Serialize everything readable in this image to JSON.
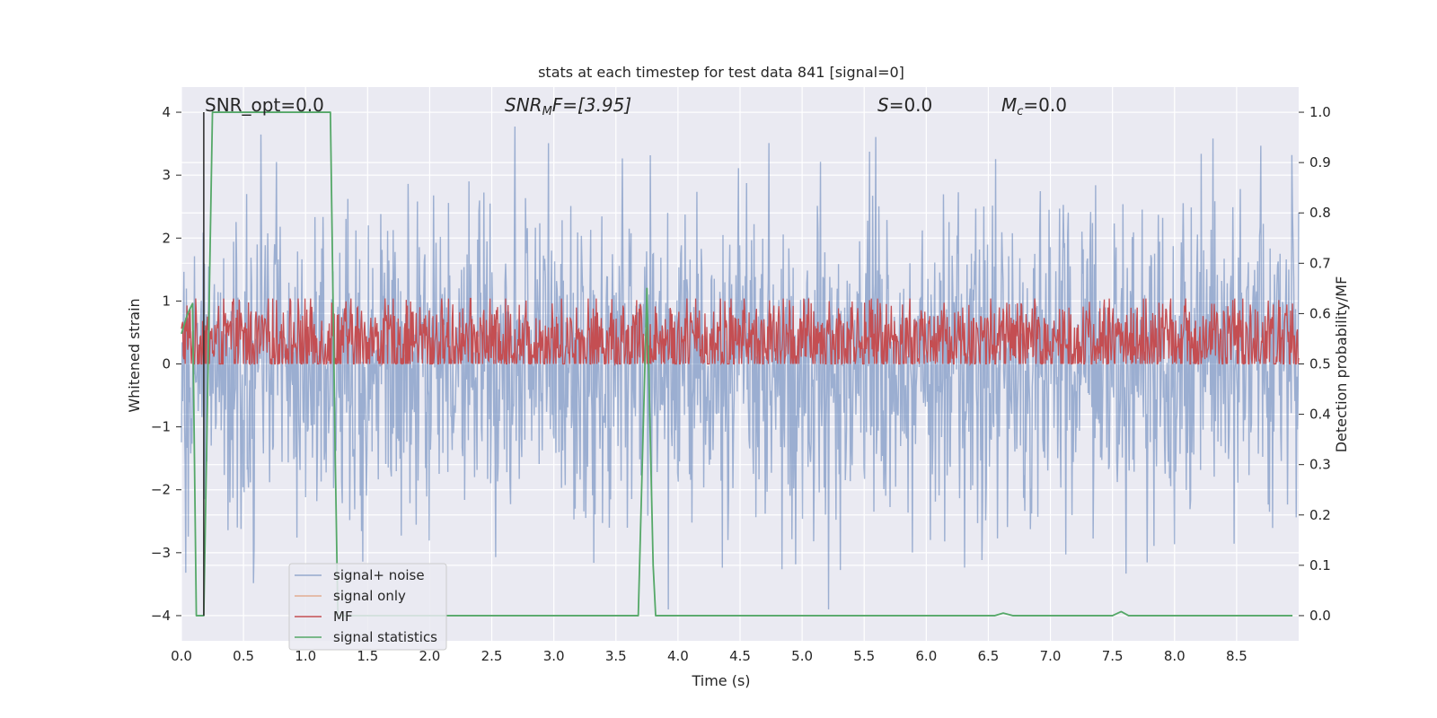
{
  "chart_data": {
    "type": "line",
    "title": "stats at each timestep for test data 841 [signal=0]",
    "xlabel": "Time (s)",
    "ylabel": "Whitened strain",
    "y2label": "Detection probability/MF",
    "xlim": [
      0.0,
      9.0
    ],
    "ylim": [
      -4.4,
      4.4
    ],
    "y2lim": [
      -0.05,
      1.05
    ],
    "x_ticks": [
      "0.0",
      "0.5",
      "1.0",
      "1.5",
      "2.0",
      "2.5",
      "3.0",
      "3.5",
      "4.0",
      "4.5",
      "5.0",
      "5.5",
      "6.0",
      "6.5",
      "7.0",
      "7.5",
      "8.0",
      "8.5"
    ],
    "y_ticks": [
      "4",
      "3",
      "2",
      "1",
      "0",
      "−1",
      "−2",
      "−3",
      "−4"
    ],
    "y2_ticks": [
      "1.0",
      "0.9",
      "0.8",
      "0.7",
      "0.6",
      "0.5",
      "0.4",
      "0.3",
      "0.2",
      "0.1",
      "0.0"
    ],
    "grid": true,
    "legend_position": "lower-left",
    "annotations": {
      "snr_opt": "SNR_opt=0.0",
      "snr_mf_prefix": "SNR",
      "snr_mf_sub": "M",
      "snr_mf_suffix": "F=[3.95]",
      "s_prefix": "S",
      "s_suffix": "=0.0",
      "mc_prefix": "M",
      "mc_sub": "c",
      "mc_suffix": "=0.0"
    },
    "marker_line": {
      "x": 0.18,
      "y": [
        -4.0,
        4.0
      ]
    },
    "series": [
      {
        "name": "signal+ noise",
        "color": "#4c72b0",
        "axis": "left",
        "noise": {
          "n": 1800,
          "sigma": 1.25,
          "clip": 3.9,
          "seed": 841
        }
      },
      {
        "name": "signal only",
        "color": "#dd8452",
        "axis": "left",
        "values": []
      },
      {
        "name": "MF",
        "color": "#c44e52",
        "axis": "right",
        "noise": {
          "n": 1800,
          "base": 0.545,
          "amp": 0.11,
          "clip_low": 0.5,
          "clip_high": 0.63,
          "seed": 1234
        }
      },
      {
        "name": "signal statistics",
        "color": "#55a868",
        "axis": "right",
        "x": [
          0.0,
          0.05,
          0.09,
          0.12,
          0.18,
          0.25,
          1.17,
          1.2,
          1.24,
          1.26,
          3.68,
          3.75,
          3.8,
          3.82,
          6.55,
          6.62,
          6.7,
          7.5,
          7.57,
          7.63,
          8.95
        ],
        "y": [
          0.56,
          0.6,
          0.62,
          0.0,
          0.0,
          1.0,
          1.0,
          1.0,
          0.3,
          0.0,
          0.0,
          0.65,
          0.1,
          0.0,
          0.0,
          0.005,
          0.0,
          0.0,
          0.008,
          0.0,
          0.0
        ]
      }
    ]
  }
}
